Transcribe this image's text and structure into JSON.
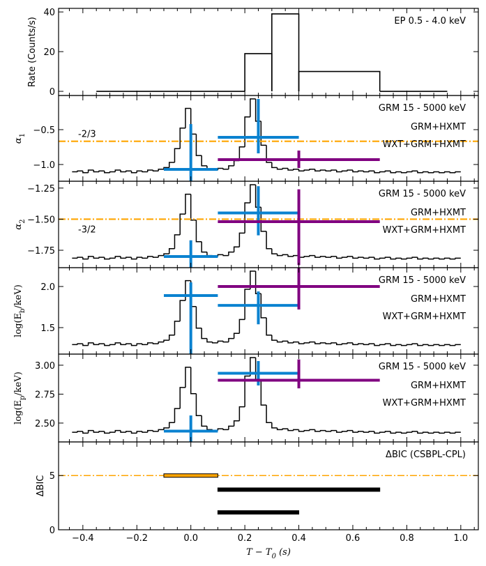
{
  "light_curve": {
    "bins": [
      -0.44,
      -0.42,
      -0.4,
      -0.38,
      -0.36,
      -0.34,
      -0.32,
      -0.3,
      -0.28,
      -0.26,
      -0.24,
      -0.22,
      -0.2,
      -0.18,
      -0.16,
      -0.14,
      -0.12,
      -0.1,
      -0.08,
      -0.06,
      -0.04,
      -0.02,
      0,
      0.02,
      0.04,
      0.06,
      0.08,
      0.1,
      0.12,
      0.14,
      0.16,
      0.18,
      0.2,
      0.22,
      0.24,
      0.26,
      0.28,
      0.3,
      0.32,
      0.34,
      0.36,
      0.38,
      0.4,
      0.42,
      0.44,
      0.46,
      0.48,
      0.5,
      0.52,
      0.54,
      0.56,
      0.58,
      0.6,
      0.62,
      0.64,
      0.66,
      0.68,
      0.7,
      0.72,
      0.74,
      0.76,
      0.78,
      0.8,
      0.82,
      0.84,
      0.86,
      0.88,
      0.9,
      0.92,
      0.94,
      0.96,
      0.98,
      1.0
    ],
    "values": [
      0.11,
      0.12,
      0.1,
      0.13,
      0.11,
      0.12,
      0.1,
      0.11,
      0.13,
      0.11,
      0.12,
      0.1,
      0.12,
      0.11,
      0.13,
      0.12,
      0.14,
      0.16,
      0.22,
      0.38,
      0.62,
      0.85,
      0.55,
      0.3,
      0.18,
      0.14,
      0.13,
      0.15,
      0.14,
      0.18,
      0.24,
      0.4,
      0.75,
      0.96,
      0.7,
      0.42,
      0.22,
      0.16,
      0.14,
      0.15,
      0.13,
      0.14,
      0.12,
      0.13,
      0.14,
      0.12,
      0.13,
      0.12,
      0.13,
      0.11,
      0.12,
      0.13,
      0.11,
      0.12,
      0.11,
      0.12,
      0.1,
      0.11,
      0.12,
      0.1,
      0.11,
      0.1,
      0.11,
      0.12,
      0.1,
      0.11,
      0.1,
      0.11,
      0.1,
      0.11,
      0.1,
      0.11
    ]
  },
  "chart_data": [
    {
      "type": "histogram",
      "ylabel": [
        {
          "text": "Rate (Counts/s)"
        }
      ],
      "label": "EP 0.5 - 4.0 keV",
      "bins": [
        -0.35,
        0.2,
        0.3,
        0.4,
        0.7,
        0.95
      ],
      "values": [
        0,
        19,
        39,
        10,
        0
      ],
      "color": "#000000",
      "ylim": [
        -2.1,
        41.8
      ],
      "yticks": [
        0,
        20,
        40
      ]
    },
    {
      "type": "errorbar",
      "ylabel": [
        {
          "text": "α",
          "italic": true
        },
        {
          "text": "1",
          "sub": true
        }
      ],
      "ylabel_font": "serif",
      "label": "GRM 15 - 5000 keV",
      "light_curve": true,
      "y2lim": [
        0,
        1
      ],
      "reference": {
        "value": -0.667,
        "label": "-2/3",
        "color": "#ffa500",
        "label_position": "above"
      },
      "series": [
        {
          "name": "GRM+HXMT",
          "color": "#0a82d0",
          "x": [
            0,
            0.25
          ],
          "x_low": [
            -0.1,
            0.1
          ],
          "x_high": [
            0.1,
            0.4
          ],
          "values": [
            -1.07,
            -0.61
          ],
          "y_low": [
            -1.3,
            -0.84
          ],
          "y_high": [
            -0.42,
            -0.06
          ]
        },
        {
          "name": "WXT+GRM+HXMT",
          "color": "#800080",
          "x": [
            0.4
          ],
          "x_low": [
            0.1
          ],
          "x_high": [
            0.7
          ],
          "values": [
            -0.93
          ],
          "y_low": [
            -1.05
          ],
          "y_high": [
            -0.8
          ]
        }
      ],
      "ylim": [
        -1.24,
        -0.01
      ],
      "yticks": [
        {
          "value": -1.0,
          "label": "−1.0"
        },
        {
          "value": -0.5,
          "label": "−0.5"
        }
      ]
    },
    {
      "type": "errorbar",
      "ylabel": [
        {
          "text": "α",
          "italic": true
        },
        {
          "text": "2",
          "sub": true
        }
      ],
      "ylabel_font": "serif",
      "label": "GRM 15 - 5000 keV",
      "light_curve": true,
      "y2lim": [
        0,
        1
      ],
      "reference": {
        "value": -1.5,
        "label": "-3/2",
        "color": "#ffa500",
        "label_position": "below"
      },
      "series": [
        {
          "name": "GRM+HXMT",
          "color": "#0a82d0",
          "x": [
            0,
            0.25
          ],
          "x_low": [
            -0.1,
            0.1
          ],
          "x_high": [
            0.1,
            0.4
          ],
          "values": [
            -1.8,
            -1.45
          ],
          "y_low": [
            -1.95,
            -1.63
          ],
          "y_high": [
            -1.67,
            -1.235
          ]
        },
        {
          "name": "WXT+GRM+HXMT",
          "color": "#800080",
          "x": [
            0.4
          ],
          "x_low": [
            0.1
          ],
          "x_high": [
            0.7
          ],
          "values": [
            -1.52
          ],
          "y_low": [
            -1.87
          ],
          "y_high": [
            -1.26
          ]
        }
      ],
      "ylim": [
        -1.89,
        -1.195
      ],
      "yticks": [
        {
          "value": -1.75,
          "label": "−1.75"
        },
        {
          "value": -1.5,
          "label": "−1.50"
        },
        {
          "value": -1.25,
          "label": "−1.25"
        }
      ]
    },
    {
      "type": "errorbar",
      "ylabel": [
        {
          "text": "log(E"
        },
        {
          "text": "b",
          "sub": true
        },
        {
          "text": "/keV)"
        }
      ],
      "ylabel_font": "serif",
      "label": "GRM 15 - 5000 keV",
      "light_curve": true,
      "y2lim": [
        0,
        1
      ],
      "series": [
        {
          "name": "GRM+HXMT",
          "color": "#0a82d0",
          "x": [
            0,
            0.25
          ],
          "x_low": [
            -0.1,
            0.1
          ],
          "x_high": [
            0.1,
            0.4
          ],
          "values": [
            1.89,
            1.77
          ],
          "y_low": [
            1.1,
            1.54
          ],
          "y_high": [
            2.05,
            1.94
          ]
        },
        {
          "name": "WXT+GRM+HXMT",
          "color": "#800080",
          "x": [
            0.4
          ],
          "x_low": [
            0.1
          ],
          "x_high": [
            0.7
          ],
          "values": [
            2.0
          ],
          "y_low": [
            1.72
          ],
          "y_high": [
            2.3
          ]
        }
      ],
      "ylim": [
        1.178,
        2.229
      ],
      "yticks": [
        1.5,
        {
          "value": 2.0,
          "label": "2.0"
        }
      ]
    },
    {
      "type": "errorbar",
      "ylabel": [
        {
          "text": "log(E"
        },
        {
          "text": "p",
          "sub": true
        },
        {
          "text": "/keV)"
        }
      ],
      "ylabel_font": "serif",
      "label": "GRM 15 - 5000 keV",
      "light_curve": true,
      "y2lim": [
        0,
        1
      ],
      "series": [
        {
          "name": "GRM+HXMT",
          "color": "#0a82d0",
          "x": [
            0,
            0.25
          ],
          "x_low": [
            -0.1,
            0.1
          ],
          "x_high": [
            0.1,
            0.4
          ],
          "values": [
            2.43,
            2.93
          ],
          "y_low": [
            2.3,
            2.825
          ],
          "y_high": [
            2.566,
            3.036
          ]
        },
        {
          "name": "WXT+GRM+HXMT",
          "color": "#800080",
          "x": [
            0.4
          ],
          "x_low": [
            0.1
          ],
          "x_high": [
            0.7
          ],
          "values": [
            2.87
          ],
          "y_low": [
            2.8
          ],
          "y_high": [
            3.05
          ]
        }
      ],
      "ylim": [
        2.337,
        3.096
      ],
      "yticks": [
        {
          "value": 2.5,
          "label": "2.50"
        },
        {
          "value": 2.75,
          "label": "2.75"
        },
        {
          "value": 3.0,
          "label": "3.00"
        }
      ]
    },
    {
      "type": "hbar",
      "ylabel": [
        {
          "text": "ΔBIC"
        }
      ],
      "label": "ΔBIC (CSBPL-CPL)",
      "reference": {
        "value": 5,
        "color": "#ffa500"
      },
      "x_start": [
        -0.1,
        0.1,
        0.1
      ],
      "x_end": [
        0.1,
        0.7,
        0.4
      ],
      "values": [
        5.0,
        3.7,
        1.6
      ],
      "colors": [
        "#ffa500",
        "#000000",
        "#000000"
      ],
      "ylim": [
        0,
        8.1
      ],
      "yticks": [
        0,
        5
      ],
      "xlim": [
        -0.49,
        1.065
      ],
      "xticks": [
        {
          "value": -0.4,
          "label": "−0.4"
        },
        {
          "value": -0.2,
          "label": "−0.2"
        },
        {
          "value": 0,
          "label": "0.0"
        },
        0.2,
        0.4,
        0.6,
        0.8,
        {
          "value": 1,
          "label": "1.0"
        }
      ],
      "xminorticks": [
        -0.45,
        -0.35,
        -0.3,
        -0.25,
        -0.15,
        -0.1,
        -0.05,
        0.05,
        0.1,
        0.15,
        0.25,
        0.3,
        0.35,
        0.45,
        0.5,
        0.55,
        0.65,
        0.7,
        0.75,
        0.85,
        0.9,
        0.95,
        1.05
      ],
      "xlabel": [
        {
          "text": "T − T",
          "italic": true
        },
        {
          "text": "0",
          "sub": true,
          "italic": true
        },
        {
          "text": " (s)",
          "italic": true
        }
      ]
    }
  ]
}
